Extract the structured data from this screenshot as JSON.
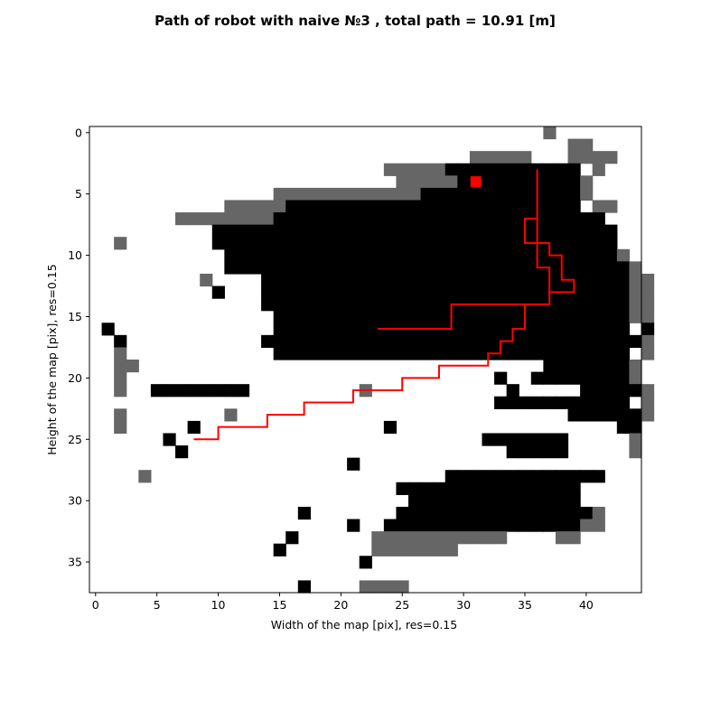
{
  "chart_data": {
    "type": "heatmap",
    "title": "Path of robot with naive №3 , total path = 10.91 [m]",
    "xlabel": "Width of the map [pix], res=0.15",
    "ylabel": "Height of the map [pix], res=0.15",
    "xlim": [
      -0.5,
      44.5
    ],
    "ylim": [
      37.5,
      -0.5
    ],
    "y_axis_inverted": true,
    "xticks": [
      0,
      5,
      10,
      15,
      20,
      25,
      30,
      35,
      40
    ],
    "xtick_labels": [
      "0",
      "5",
      "10",
      "15",
      "20",
      "25",
      "30",
      "35",
      "40"
    ],
    "yticks": [
      0,
      5,
      10,
      15,
      20,
      25,
      30,
      35
    ],
    "ytick_labels": [
      "0",
      "5",
      "10",
      "15",
      "20",
      "25",
      "30",
      "35"
    ],
    "grid": false,
    "legend": "none",
    "colors": {
      "free": "#ffffff",
      "unknown": "#000000",
      "obstacle": "#666666",
      "path": "#ff0000",
      "goal": "#ff0000"
    },
    "cell_legend": {
      "0": "free",
      "1": "unknown",
      "2": "obstacle"
    },
    "map_cells": [
      ".....................................2.......",
      ".......................................22....",
      "...............................22222...2222..",
      "........................2222211111111111.2...",
      ".........................2222211111111112....",
      "...............22222222222211111111111112....",
      "...........22222111111111111111111111111.22..",
      ".......22222222111111111111111111111111111...",
      "..........111111111111111111111111111111111..",
      "..2.......111111111111111111111111111111111..",
      "...........111111111111111111111111111111112.",
      "...........1111111111111111111111111111111112",
      ".........2....11111111111111111111111111111122",
      "..........1...11111111111111111111111111111122",
      "..............11111111111111111111111111111122",
      "...............1111111111111111111111111111122",
      ".1.............11111111111111111111111111111.1",
      "..1...........11111111111111111111111111111112",
      "..2............11111111111111111111111111111.2",
      "..22.................................11111112",
      "..2..............................1..111111112",
      "..2..11111111.........2...........1.....111112",
      ".................................11111111111.2",
      "..2........2...........................1111112",
      "..2.....1...............1..................11",
      "......1.........................1111111.....2",
      ".......1..........................11111.....2",
      ".....................1........................",
      "....2........................1111111111111...",
      ".........................111111111111111......",
      "..........................11111111111111......",
      ".................1.......11111111111111112....",
      ".....................1..111111111111111122....",
      "................1......22222222222....22......",
      "...............1.......2222222................",
      "......................1.......................",
      ".............................................",
      ".................1....2222...................."
    ],
    "path": {
      "name": "",
      "x": [
        8,
        10,
        10,
        14,
        14,
        17,
        17,
        21,
        21,
        25,
        25,
        28,
        28,
        32,
        32,
        33,
        33,
        34,
        34,
        35,
        35,
        37,
        37,
        39,
        39,
        38,
        38,
        37,
        37,
        36,
        36,
        36,
        36,
        35,
        35,
        36,
        36,
        37,
        37,
        29,
        29,
        23
      ],
      "y": [
        25,
        25,
        24,
        24,
        23,
        23,
        22,
        22,
        21,
        21,
        20,
        20,
        19,
        19,
        18,
        18,
        17,
        17,
        16,
        16,
        14,
        14,
        13,
        13,
        12,
        12,
        10,
        10,
        9,
        9,
        3,
        9,
        9,
        9,
        7,
        7,
        11,
        11,
        14,
        14,
        16,
        16
      ]
    },
    "goal": {
      "x": 31,
      "y": 4
    }
  }
}
